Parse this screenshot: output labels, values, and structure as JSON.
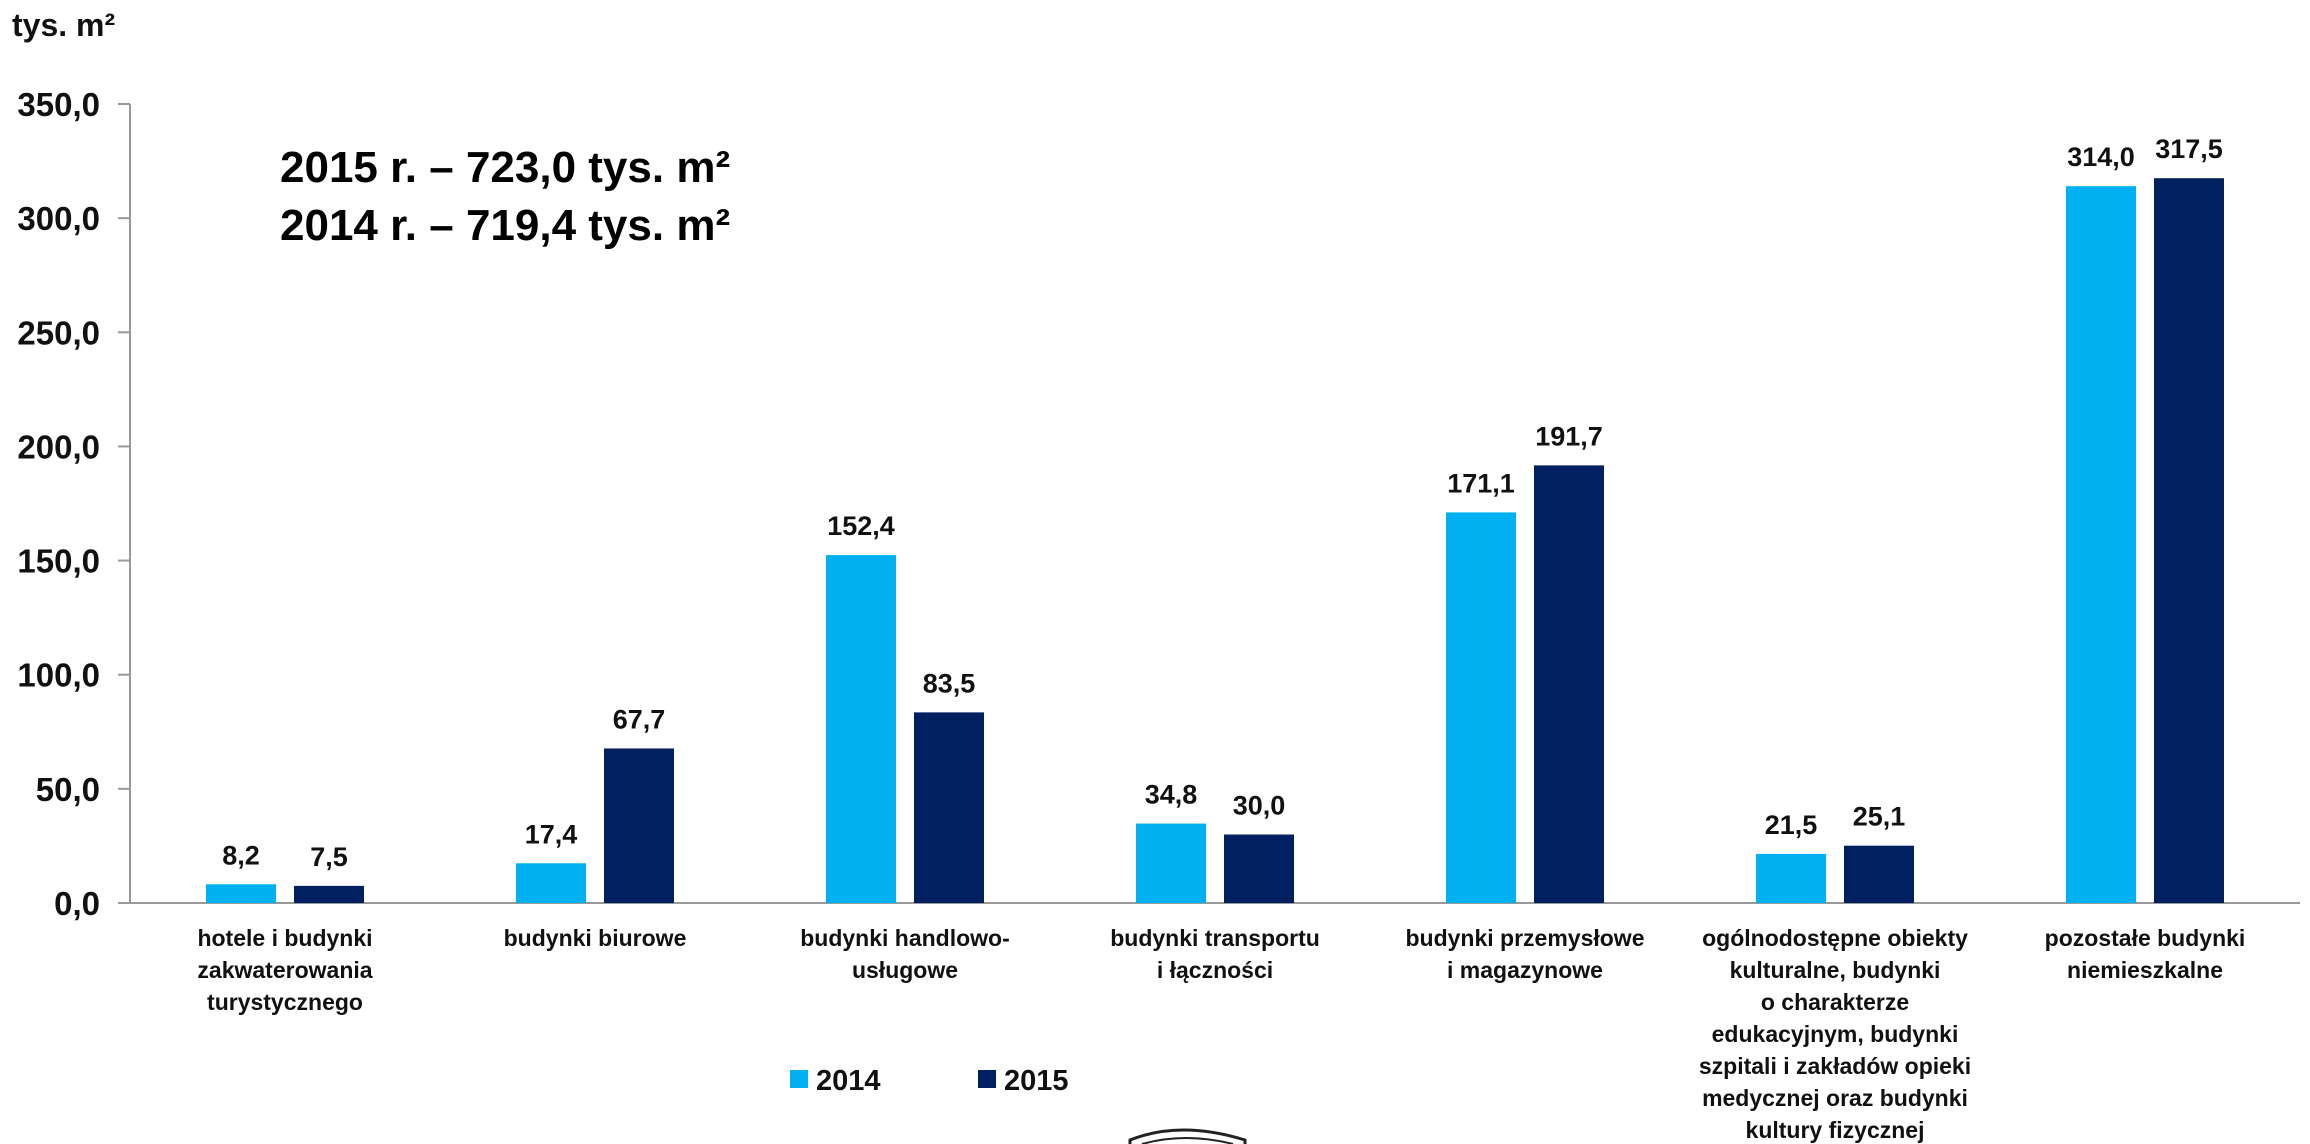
{
  "chart_data": {
    "type": "bar",
    "ylabel": "tys. m²",
    "ylim": [
      0,
      350
    ],
    "yticks": [
      "0,0",
      "50,0",
      "100,0",
      "150,0",
      "200,0",
      "250,0",
      "300,0",
      "350,0"
    ],
    "grid": false,
    "legend_position": "bottom",
    "annotations": [
      "2015 r. – 723,0 tys. m²",
      "2014 r. – 719,4 tys. m²"
    ],
    "categories": [
      [
        "hotele i budynki",
        "zakwaterowania",
        "turystycznego"
      ],
      [
        "budynki biurowe"
      ],
      [
        "budynki handlowo-",
        "usługowe"
      ],
      [
        "budynki transportu",
        "i łączności"
      ],
      [
        "budynki przemysłowe",
        "i magazynowe"
      ],
      [
        "ogólnodostępne obiekty",
        "kulturalne, budynki",
        "o charakterze",
        "edukacyjnym, budynki",
        "szpitali i zakładów opieki",
        "medycznej oraz budynki",
        "kultury fizycznej"
      ],
      [
        "pozostałe budynki",
        "niemieszkalne"
      ]
    ],
    "series": [
      {
        "name": "2014",
        "color": "#00b0f0",
        "values": [
          8.2,
          17.4,
          152.4,
          34.8,
          171.1,
          21.5,
          314.0
        ],
        "labels": [
          "8,2",
          "17,4",
          "152,4",
          "34,8",
          "171,1",
          "21,5",
          "314,0"
        ]
      },
      {
        "name": "2015",
        "color": "#002060",
        "values": [
          7.5,
          67.7,
          83.5,
          30.0,
          191.7,
          25.1,
          317.5
        ],
        "labels": [
          "7,5",
          "67,7",
          "83,5",
          "30,0",
          "191,7",
          "25,1",
          "317,5"
        ]
      }
    ]
  }
}
